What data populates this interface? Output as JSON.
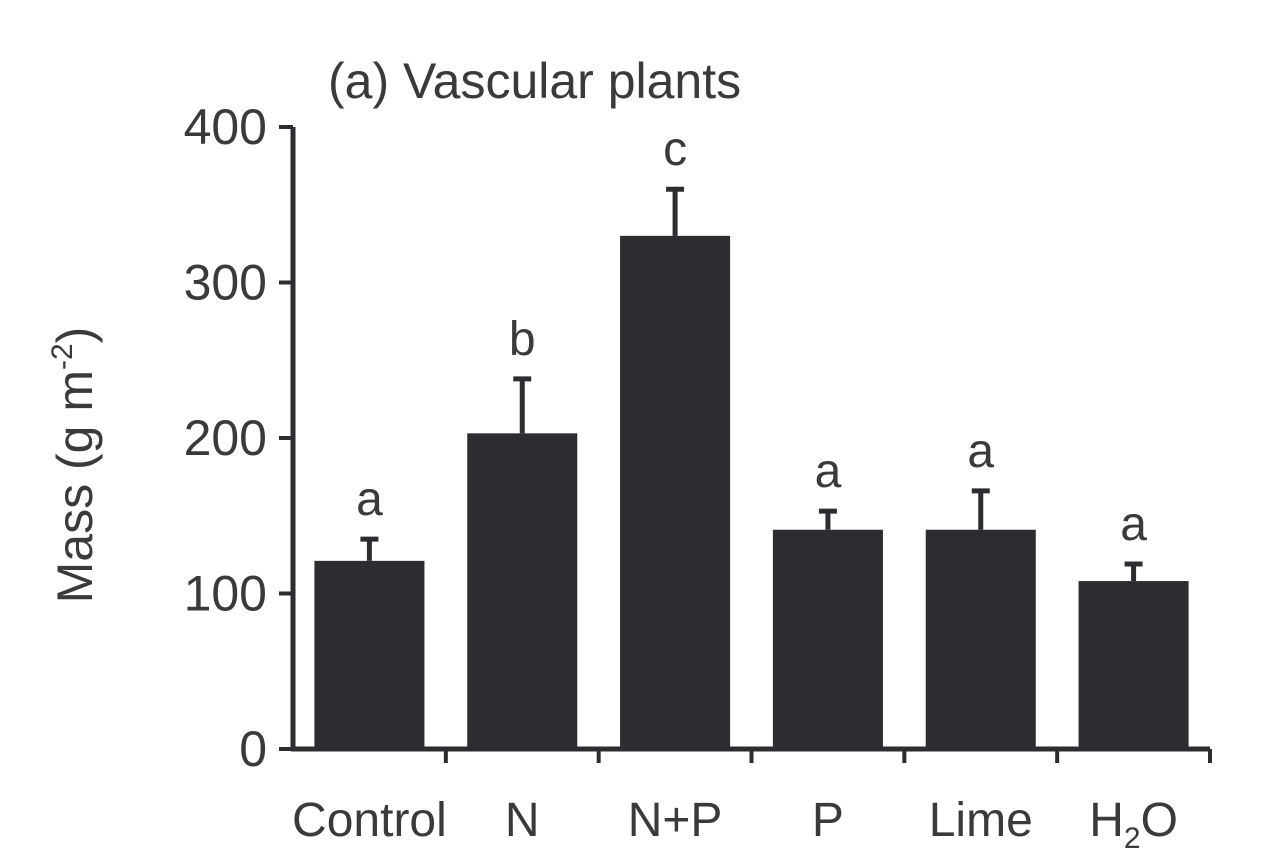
{
  "chart_data": {
    "type": "bar",
    "title": "(a) Vascular plants",
    "ylabel": "Mass (g m",
    "ylabel_superscript": "-2",
    "ylabel_suffix": ")",
    "ylim": [
      0,
      400
    ],
    "yticks": [
      "0",
      "100",
      "200",
      "300",
      "400"
    ],
    "grid": false,
    "categories": [
      {
        "label": "Control"
      },
      {
        "label": "N"
      },
      {
        "label": "N+P"
      },
      {
        "label": "P"
      },
      {
        "label": "Lime"
      },
      {
        "label": "H",
        "subscript": "2",
        "suffix": "O"
      }
    ],
    "values": [
      121,
      203,
      330,
      141,
      141,
      108
    ],
    "errors": [
      14,
      35,
      30,
      12,
      25,
      11
    ],
    "significance_letters": [
      "a",
      "b",
      "c",
      "a",
      "a",
      "a"
    ],
    "colors": {
      "bar": "#2b2d31",
      "axis": "#2b2d31",
      "text": "#3a3a3a"
    }
  }
}
